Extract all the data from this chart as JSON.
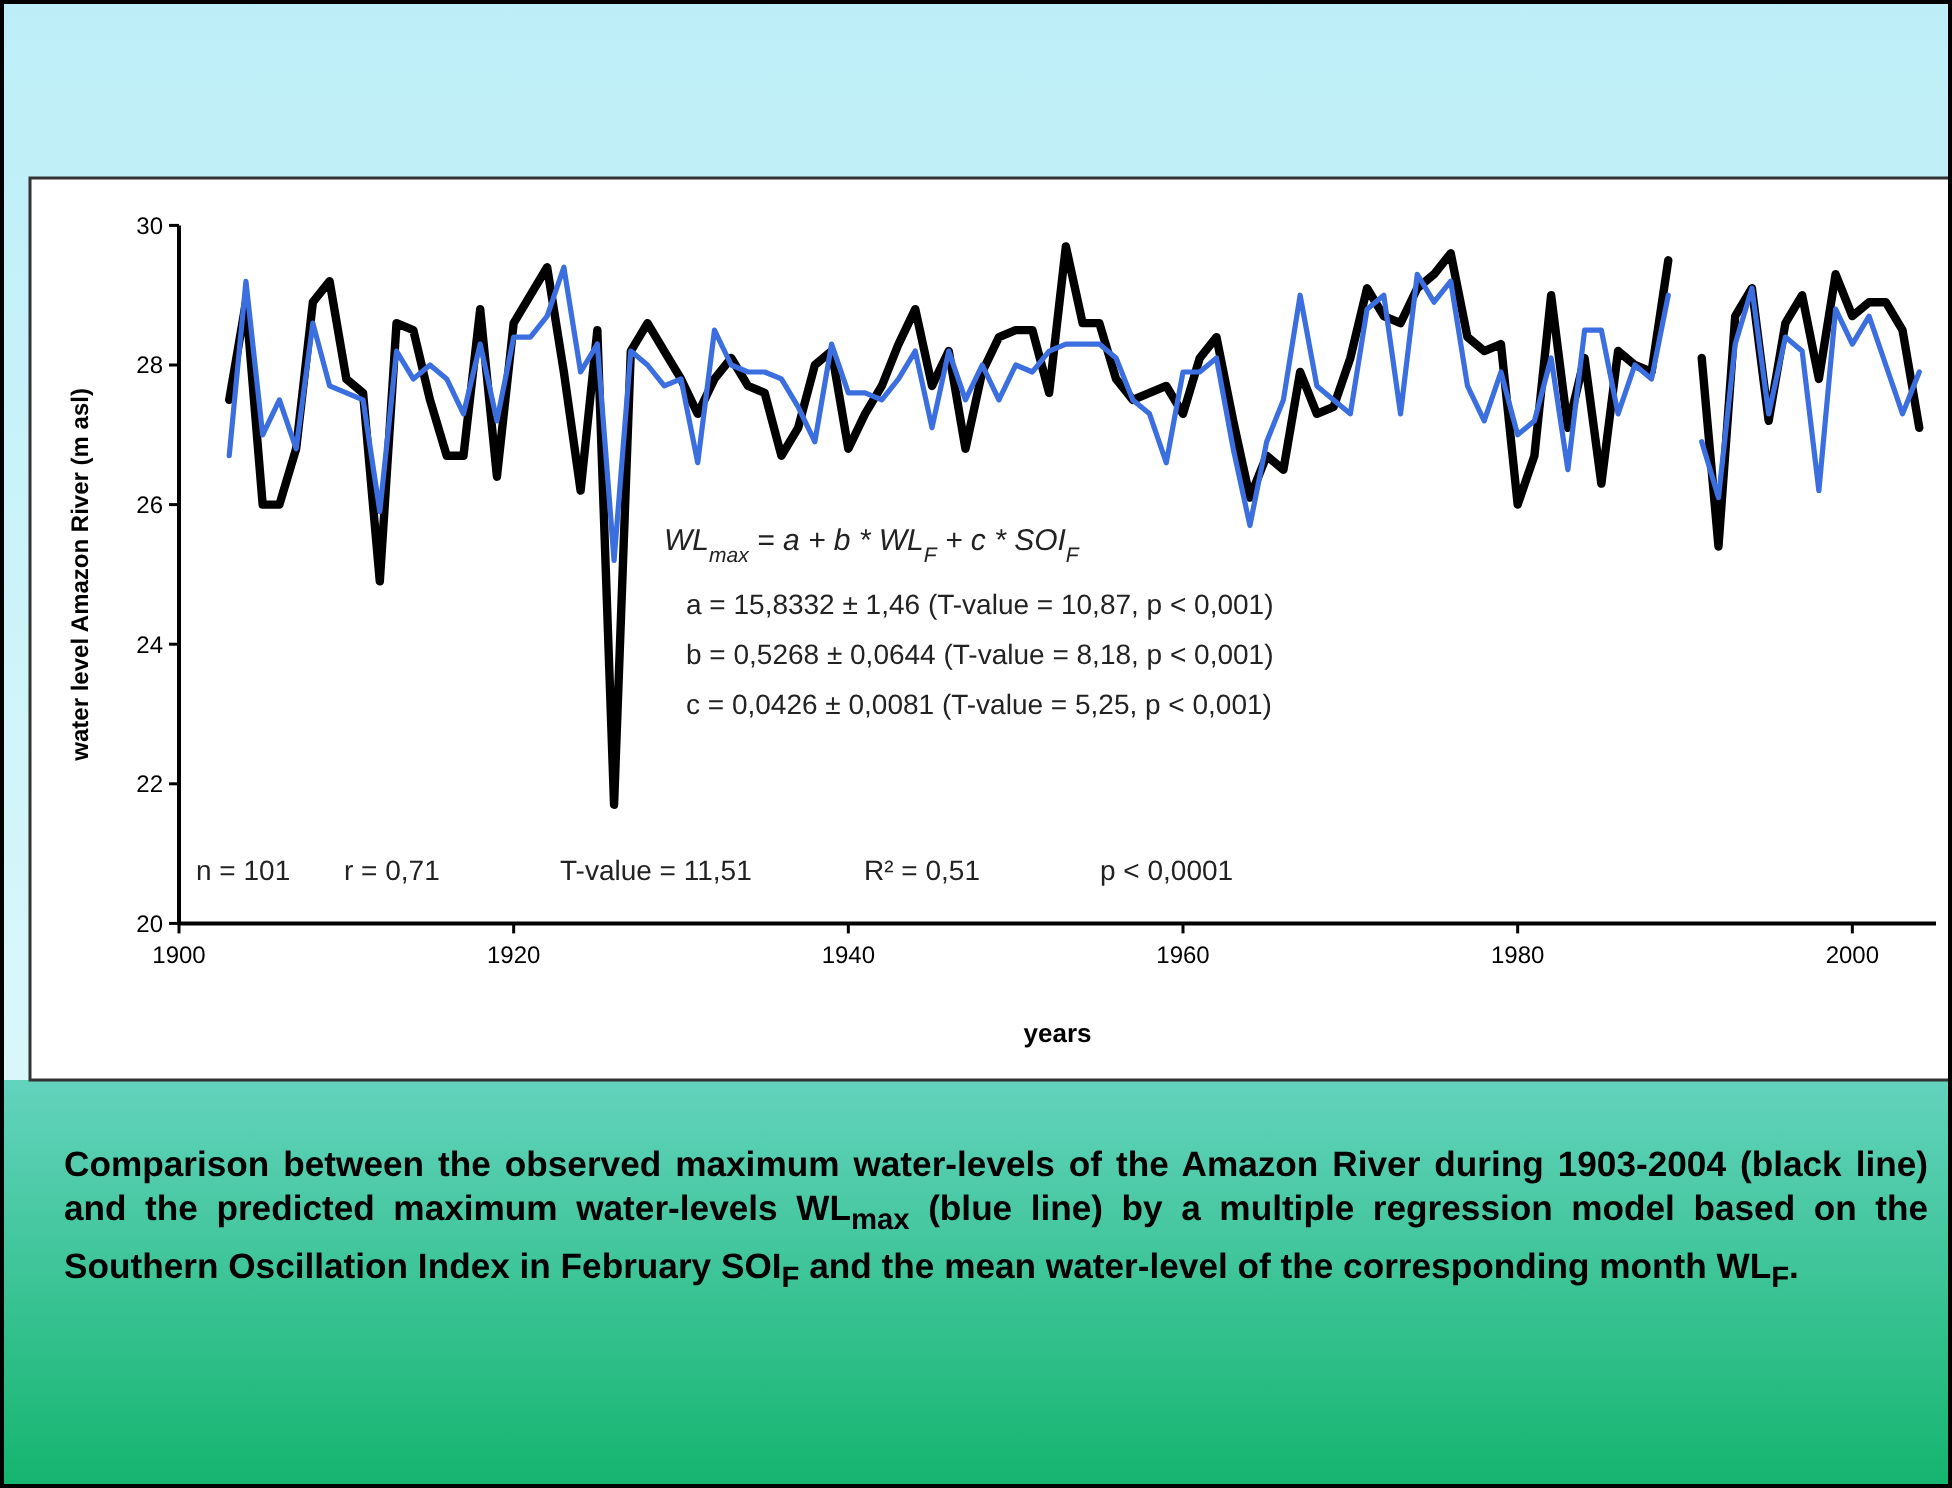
{
  "chart_data": {
    "type": "line",
    "xlabel": "years",
    "ylabel": "water level Amazon River (m asl)",
    "x": [
      1903,
      1904,
      1905,
      1906,
      1907,
      1908,
      1909,
      1910,
      1911,
      1912,
      1913,
      1914,
      1915,
      1916,
      1917,
      1918,
      1919,
      1920,
      1921,
      1922,
      1923,
      1924,
      1925,
      1926,
      1927,
      1928,
      1929,
      1930,
      1931,
      1932,
      1933,
      1934,
      1935,
      1936,
      1937,
      1938,
      1939,
      1940,
      1941,
      1942,
      1943,
      1944,
      1945,
      1946,
      1947,
      1948,
      1949,
      1950,
      1951,
      1952,
      1953,
      1954,
      1955,
      1956,
      1957,
      1958,
      1959,
      1960,
      1961,
      1962,
      1963,
      1964,
      1965,
      1966,
      1967,
      1968,
      1969,
      1970,
      1971,
      1972,
      1973,
      1974,
      1975,
      1976,
      1977,
      1978,
      1979,
      1980,
      1981,
      1982,
      1983,
      1984,
      1985,
      1986,
      1987,
      1988,
      1989,
      1990,
      1991,
      1992,
      1993,
      1994,
      1995,
      1996,
      1997,
      1998,
      1999,
      2000,
      2001,
      2002,
      2003,
      2004
    ],
    "series": [
      {
        "color": "#000000",
        "values": [
          27.5,
          28.9,
          26.0,
          26.0,
          26.8,
          28.9,
          29.2,
          27.8,
          27.6,
          24.9,
          28.6,
          28.5,
          27.5,
          26.7,
          26.7,
          28.8,
          26.4,
          28.6,
          29.0,
          29.4,
          27.9,
          26.2,
          28.5,
          21.7,
          28.2,
          28.6,
          28.2,
          27.8,
          27.3,
          27.8,
          28.1,
          27.7,
          27.6,
          26.7,
          27.1,
          28.0,
          28.2,
          26.8,
          27.3,
          27.7,
          28.3,
          28.8,
          27.7,
          28.2,
          26.8,
          27.9,
          28.4,
          28.5,
          28.5,
          27.6,
          29.7,
          28.6,
          28.6,
          27.8,
          27.5,
          27.6,
          27.7,
          27.3,
          28.1,
          28.4,
          27.2,
          26.1,
          26.7,
          26.5,
          27.9,
          27.3,
          27.4,
          28.1,
          29.1,
          28.7,
          28.6,
          29.1,
          29.3,
          29.6,
          28.4,
          28.2,
          28.3,
          26.0,
          26.7,
          29.0,
          27.1,
          28.1,
          26.3,
          28.2,
          28.0,
          27.9,
          29.5,
          null,
          28.1,
          25.4,
          28.7,
          29.1,
          27.2,
          28.6,
          29.0,
          27.8,
          29.3,
          28.7,
          28.9,
          28.9,
          28.5,
          27.1
        ]
      },
      {
        "color": "#3b6fe0",
        "values": [
          26.7,
          29.2,
          27.0,
          27.5,
          26.8,
          28.6,
          27.7,
          27.6,
          27.5,
          25.9,
          28.2,
          27.8,
          28.0,
          27.8,
          27.3,
          28.3,
          27.2,
          28.4,
          28.4,
          28.7,
          29.4,
          27.9,
          28.3,
          25.2,
          28.2,
          28.0,
          27.7,
          27.8,
          26.6,
          28.5,
          28.0,
          27.9,
          27.9,
          27.8,
          27.4,
          26.9,
          28.3,
          27.6,
          27.6,
          27.5,
          27.8,
          28.2,
          27.1,
          28.2,
          27.5,
          28.0,
          27.5,
          28.0,
          27.9,
          28.2,
          28.3,
          28.3,
          28.3,
          28.1,
          27.5,
          27.3,
          26.6,
          27.9,
          27.9,
          28.1,
          26.8,
          25.7,
          26.9,
          27.5,
          29.0,
          27.7,
          27.5,
          27.3,
          28.8,
          29.0,
          27.3,
          29.3,
          28.9,
          29.2,
          27.7,
          27.2,
          27.9,
          27.0,
          27.2,
          28.1,
          26.5,
          28.5,
          28.5,
          27.3,
          28.0,
          27.8,
          29.0,
          null,
          26.9,
          26.1,
          28.3,
          29.1,
          27.3,
          28.4,
          28.2,
          26.2,
          28.8,
          28.3,
          28.7,
          28.0,
          27.3,
          27.9
        ]
      }
    ],
    "xlim": [
      1900,
      2005
    ],
    "xticks": [
      1900,
      1920,
      1940,
      1960,
      1980,
      2000
    ],
    "ylim": [
      20,
      30
    ],
    "yticks": [
      20,
      22,
      24,
      26,
      28,
      30
    ],
    "grid": false,
    "marker": "none",
    "line_style": "solid",
    "annotations": [
      "WL$_{max}$ = a + b * WL$_{F}$ + c * SOI$_{F}$",
      "a = 15,8332 ± 1,46 (T-value = 10,87, p < 0,001)",
      "b = 0,5268 ± 0,0644 (T-value = 8,18, p < 0,001)",
      "c = 0,0426 ± 0,0081 (T-value = 5,25, p < 0,001)",
      "n = 101",
      "r = 0,71",
      "T-value = 11,51",
      "R² = 0,51",
      "p < 0,0001",
      "Comparison between the observed maximum water-levels of the Amazon River during 1903-2004 (black line) and the predicted maximum water-levels WL$_{max}$ (blue line) by a multiple regression model based on the Southern Oscillation Index in February SOI$_{F}$ and the mean water-level of the corresponding month WL$_{F}$."
    ]
  }
}
